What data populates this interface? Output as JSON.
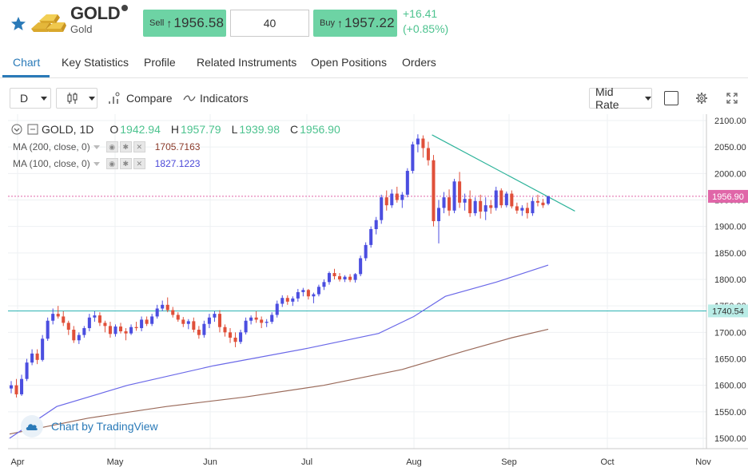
{
  "instrument": {
    "symbol": "GOLD",
    "name": "Gold",
    "sell_label": "Sell",
    "sell_price": "1956.58",
    "quantity": "40",
    "buy_label": "Buy",
    "buy_price": "1957.22",
    "change": "+16.41",
    "change_pct": "(+0.85%)",
    "up_arrow": "↑"
  },
  "tabs": [
    {
      "label": "Chart",
      "active": true
    },
    {
      "label": "Key Statistics"
    },
    {
      "label": "Profile"
    },
    {
      "label": "Related Instruments"
    },
    {
      "label": "Open Positions"
    },
    {
      "label": "Orders"
    }
  ],
  "toolbar": {
    "interval": "D",
    "compare": "Compare",
    "indicators": "Indicators",
    "rate_mode": "Mid Rate"
  },
  "legend": {
    "title": "GOLD, 1D",
    "open_label": "O",
    "open": "1942.94",
    "high_label": "H",
    "high": "1957.79",
    "low_label": "L",
    "low": "1939.98",
    "close_label": "C",
    "close": "1956.90",
    "ma200_label": "MA (200, close, 0)",
    "ma200_value": "1705.7163",
    "ma100_label": "MA (100, close, 0)",
    "ma100_value": "1827.1223"
  },
  "watermark": "Chart by TradingView",
  "colors": {
    "accent": "#2a7ab8",
    "price_button": "#6dd3a4",
    "up": "#4dc38f",
    "down": "#e0503a",
    "ma200": "#9a6a5a",
    "ma100": "#6a68e8",
    "trendline": "#2db39a",
    "last_price": "#e066a8",
    "level_line": "#2db3b3"
  },
  "chart_data": {
    "type": "candlestick",
    "title": "GOLD, 1D",
    "y_ticks": [
      1500,
      1550,
      1600,
      1650,
      1700,
      1750,
      1800,
      1850,
      1900,
      1950,
      2000,
      2050,
      2100
    ],
    "ylim": [
      1480,
      2110
    ],
    "x_ticks": [
      "Apr",
      "May",
      "Jun",
      "Jul",
      "Aug",
      "Sep",
      "Oct",
      "Nov"
    ],
    "last_price": 1956.9,
    "horizontal_level": 1740.54,
    "ohlc": [
      [
        1594,
        1608,
        1585,
        1600
      ],
      [
        1600,
        1612,
        1577,
        1583
      ],
      [
        1583,
        1620,
        1580,
        1612
      ],
      [
        1612,
        1650,
        1608,
        1643
      ],
      [
        1643,
        1668,
        1638,
        1660
      ],
      [
        1660,
        1668,
        1640,
        1648
      ],
      [
        1648,
        1695,
        1645,
        1688
      ],
      [
        1688,
        1728,
        1684,
        1722
      ],
      [
        1722,
        1745,
        1715,
        1735
      ],
      [
        1735,
        1750,
        1726,
        1730
      ],
      [
        1730,
        1740,
        1712,
        1718
      ],
      [
        1718,
        1722,
        1695,
        1705
      ],
      [
        1705,
        1712,
        1680,
        1685
      ],
      [
        1685,
        1700,
        1678,
        1695
      ],
      [
        1695,
        1712,
        1690,
        1708
      ],
      [
        1708,
        1735,
        1702,
        1728
      ],
      [
        1728,
        1740,
        1720,
        1732
      ],
      [
        1732,
        1738,
        1712,
        1718
      ],
      [
        1718,
        1722,
        1700,
        1712
      ],
      [
        1712,
        1720,
        1690,
        1697
      ],
      [
        1697,
        1715,
        1692,
        1711
      ],
      [
        1711,
        1718,
        1698,
        1702
      ],
      [
        1702,
        1708,
        1685,
        1698
      ],
      [
        1698,
        1715,
        1695,
        1710
      ],
      [
        1710,
        1720,
        1703,
        1708
      ],
      [
        1708,
        1730,
        1702,
        1724
      ],
      [
        1724,
        1730,
        1712,
        1716
      ],
      [
        1716,
        1735,
        1712,
        1730
      ],
      [
        1730,
        1752,
        1726,
        1745
      ],
      [
        1745,
        1760,
        1740,
        1752
      ],
      [
        1752,
        1766,
        1738,
        1742
      ],
      [
        1742,
        1748,
        1728,
        1733
      ],
      [
        1733,
        1738,
        1720,
        1724
      ],
      [
        1724,
        1729,
        1710,
        1716
      ],
      [
        1716,
        1725,
        1706,
        1721
      ],
      [
        1721,
        1728,
        1700,
        1705
      ],
      [
        1705,
        1712,
        1688,
        1695
      ],
      [
        1695,
        1722,
        1690,
        1716
      ],
      [
        1716,
        1735,
        1708,
        1728
      ],
      [
        1728,
        1740,
        1720,
        1735
      ],
      [
        1735,
        1742,
        1700,
        1710
      ],
      [
        1710,
        1715,
        1692,
        1700
      ],
      [
        1700,
        1708,
        1680,
        1690
      ],
      [
        1690,
        1700,
        1672,
        1682
      ],
      [
        1682,
        1705,
        1678,
        1700
      ],
      [
        1700,
        1728,
        1696,
        1722
      ],
      [
        1722,
        1732,
        1715,
        1728
      ],
      [
        1728,
        1740,
        1718,
        1724
      ],
      [
        1724,
        1730,
        1708,
        1718
      ],
      [
        1718,
        1725,
        1710,
        1720
      ],
      [
        1720,
        1738,
        1716,
        1733
      ],
      [
        1733,
        1760,
        1728,
        1754
      ],
      [
        1754,
        1770,
        1748,
        1765
      ],
      [
        1765,
        1770,
        1752,
        1758
      ],
      [
        1758,
        1768,
        1750,
        1764
      ],
      [
        1764,
        1782,
        1758,
        1776
      ],
      [
        1776,
        1784,
        1768,
        1780
      ],
      [
        1780,
        1782,
        1762,
        1768
      ],
      [
        1768,
        1775,
        1755,
        1772
      ],
      [
        1772,
        1790,
        1768,
        1786
      ],
      [
        1786,
        1800,
        1780,
        1795
      ],
      [
        1795,
        1815,
        1790,
        1812
      ],
      [
        1812,
        1820,
        1800,
        1806
      ],
      [
        1806,
        1812,
        1796,
        1800
      ],
      [
        1800,
        1808,
        1795,
        1805
      ],
      [
        1805,
        1810,
        1795,
        1799
      ],
      [
        1799,
        1812,
        1794,
        1810
      ],
      [
        1810,
        1845,
        1806,
        1840
      ],
      [
        1840,
        1870,
        1835,
        1865
      ],
      [
        1865,
        1900,
        1860,
        1895
      ],
      [
        1895,
        1918,
        1885,
        1912
      ],
      [
        1912,
        1960,
        1905,
        1955
      ],
      [
        1955,
        1968,
        1930,
        1940
      ],
      [
        1940,
        1970,
        1935,
        1962
      ],
      [
        1962,
        1975,
        1945,
        1950
      ],
      [
        1950,
        1965,
        1935,
        1960
      ],
      [
        1960,
        2010,
        1955,
        2005
      ],
      [
        2005,
        2060,
        2000,
        2055
      ],
      [
        2055,
        2074,
        2040,
        2066
      ],
      [
        2066,
        2072,
        2030,
        2048
      ],
      [
        2048,
        2060,
        2015,
        2025
      ],
      [
        2025,
        2035,
        1900,
        1910
      ],
      [
        1910,
        1950,
        1868,
        1935
      ],
      [
        1935,
        1965,
        1925,
        1955
      ],
      [
        1955,
        1970,
        1920,
        1930
      ],
      [
        1930,
        1990,
        1925,
        1985
      ],
      [
        1985,
        2003,
        1935,
        1945
      ],
      [
        1945,
        1962,
        1930,
        1952
      ],
      [
        1952,
        1968,
        1918,
        1925
      ],
      [
        1925,
        1955,
        1920,
        1948
      ],
      [
        1948,
        1960,
        1915,
        1928
      ],
      [
        1928,
        1955,
        1912,
        1940
      ],
      [
        1940,
        1950,
        1924,
        1935
      ],
      [
        1935,
        1975,
        1930,
        1968
      ],
      [
        1968,
        1972,
        1935,
        1940
      ],
      [
        1940,
        1966,
        1936,
        1962
      ],
      [
        1962,
        1968,
        1934,
        1938
      ],
      [
        1938,
        1945,
        1924,
        1930
      ],
      [
        1930,
        1940,
        1920,
        1935
      ],
      [
        1935,
        1945,
        1915,
        1925
      ],
      [
        1925,
        1955,
        1920,
        1948
      ],
      [
        1948,
        1960,
        1938,
        1945
      ],
      [
        1945,
        1952,
        1935,
        1940
      ],
      [
        1942.94,
        1957.79,
        1939.98,
        1956.9
      ]
    ],
    "ma100": [
      [
        0,
        1500
      ],
      [
        60,
        1560
      ],
      [
        150,
        1600
      ],
      [
        260,
        1637
      ],
      [
        380,
        1670
      ],
      [
        470,
        1698
      ],
      [
        515,
        1730
      ],
      [
        555,
        1768
      ],
      [
        620,
        1795
      ],
      [
        686,
        1827
      ]
    ],
    "ma200": [
      [
        0,
        1508
      ],
      [
        100,
        1538
      ],
      [
        200,
        1560
      ],
      [
        300,
        1578
      ],
      [
        400,
        1600
      ],
      [
        500,
        1630
      ],
      [
        580,
        1665
      ],
      [
        640,
        1690
      ],
      [
        686,
        1706
      ]
    ],
    "trendline": [
      [
        538,
        2073
      ],
      [
        720,
        1929
      ]
    ]
  }
}
